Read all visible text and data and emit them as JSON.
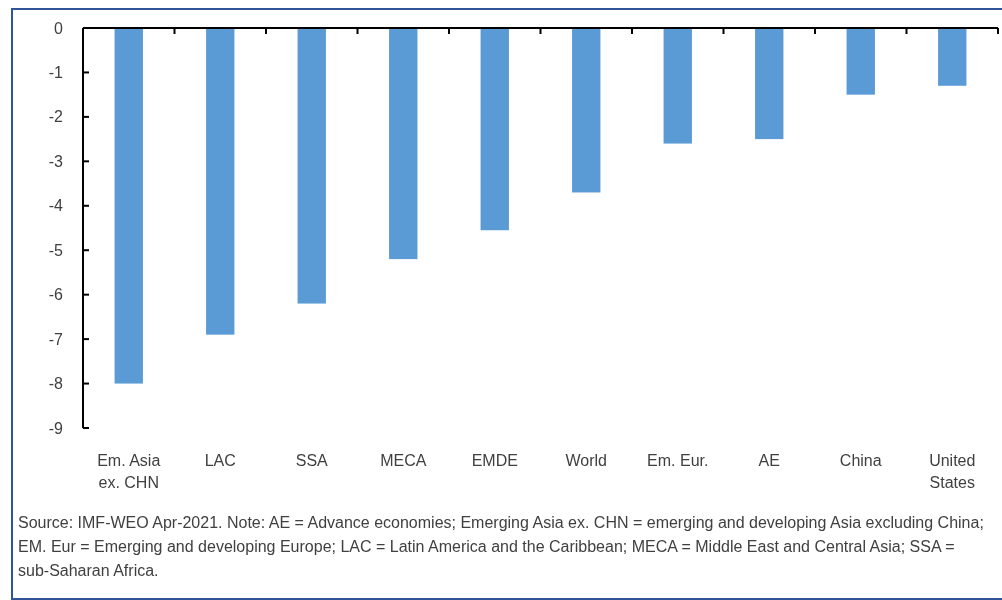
{
  "chart_data": {
    "type": "bar",
    "categories": [
      "Em. Asia\nex. CHN",
      "LAC",
      "SSA",
      "MECA",
      "EMDE",
      "World",
      "Em. Eur.",
      "AE",
      "China",
      "United\nStates"
    ],
    "values": [
      -8.0,
      -6.9,
      -6.2,
      -5.2,
      -4.55,
      -3.7,
      -2.6,
      -2.5,
      -1.5,
      -1.3
    ],
    "color": "#5b9bd5",
    "ylim": [
      -9,
      0
    ],
    "yticks": [
      -9,
      -8,
      -7,
      -6,
      -5,
      -4,
      -3,
      -2,
      -1,
      0
    ],
    "grid": false,
    "annotations": [
      "Source: IMF-WEO Apr-2021. Note: AE = Advance economies; Emerging Asia ex. CHN = emerging and developing Asia excluding China; EM. Eur = Emerging and developing Europe; LAC = Latin America and the Caribbean; MECA = Middle East and Central Asia; SSA = sub-Saharan Africa."
    ]
  }
}
